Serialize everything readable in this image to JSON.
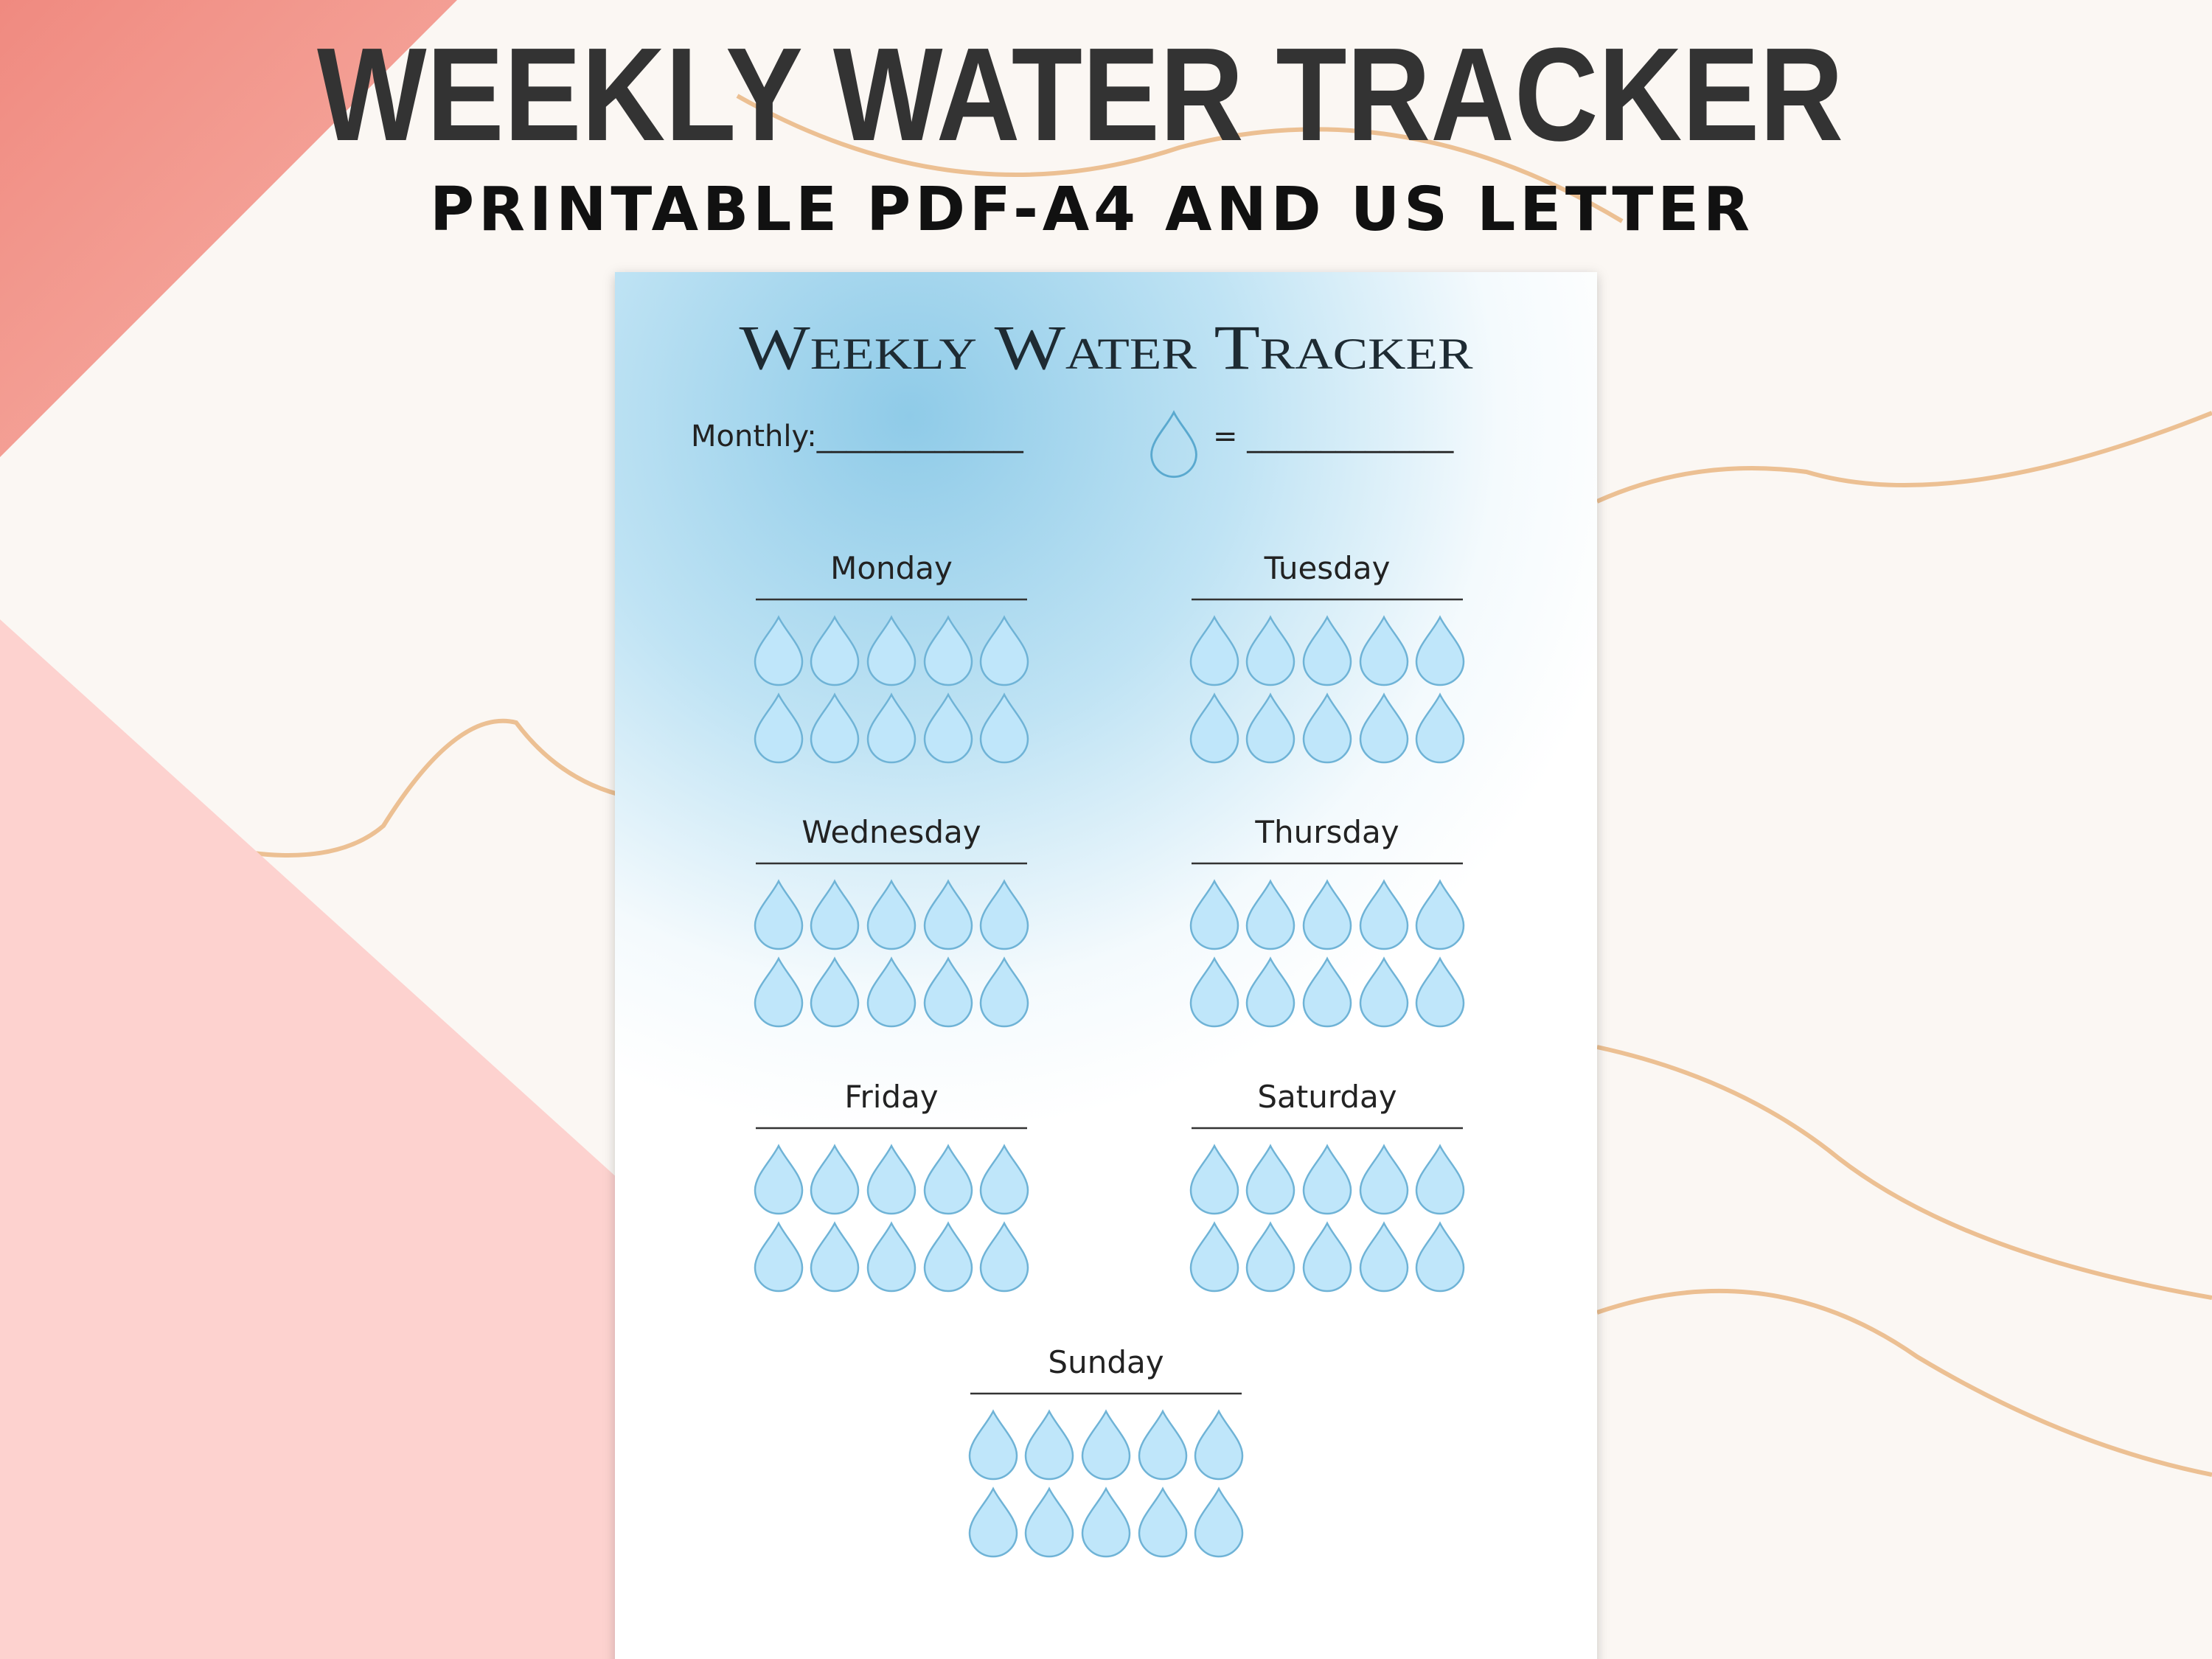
{
  "header": {
    "title": "WEEKLY WATER TRACKER",
    "subtitle": "PRINTABLE PDF-A4 AND US LETTER"
  },
  "sheet": {
    "title": "Weekly Water Tracker",
    "monthly_label": "Monthly:______________",
    "equals_label": "= ______________",
    "days": [
      "Monday",
      "Tuesday",
      "Wednesday",
      "Thursday",
      "Friday",
      "Saturday",
      "Sunday"
    ]
  }
}
